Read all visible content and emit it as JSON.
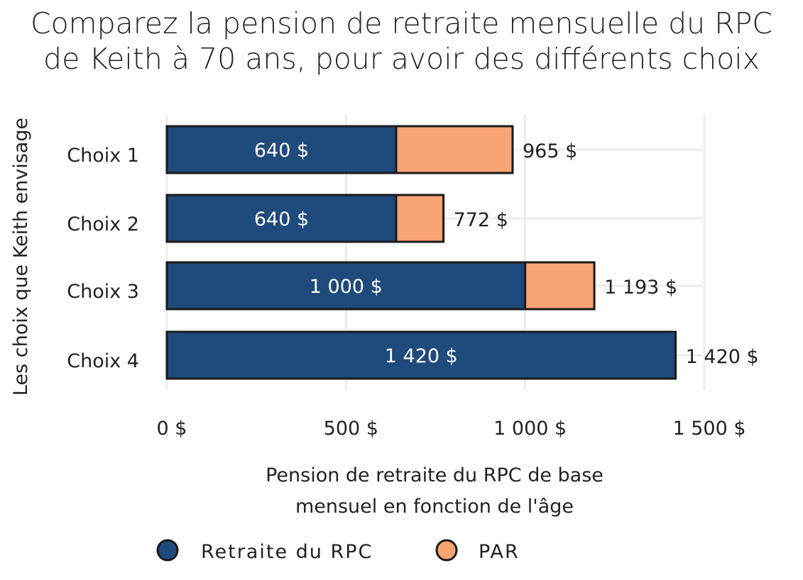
{
  "chart_data": {
    "type": "bar",
    "orientation": "horizontal",
    "stacked": true,
    "title_lines": [
      "Comparez la pension de retraite mensuelle du RPC",
      "de Keith à 70 ans, pour avoir des différents choix"
    ],
    "categories": [
      "Choix 1",
      "Choix 2",
      "Choix 3",
      "Choix 4"
    ],
    "series": [
      {
        "name": "Retraite du RPC",
        "values": [
          640,
          640,
          1000,
          1420
        ],
        "labels": [
          "640 $",
          "640 $",
          "1 000 $",
          "1 420 $"
        ]
      },
      {
        "name": "PAR",
        "values": [
          325,
          132,
          193,
          0
        ]
      }
    ],
    "totals": [
      965,
      772,
      1193,
      1420
    ],
    "total_labels": [
      "965 $",
      "772 $",
      "1 193 $",
      "1 420 $"
    ],
    "ylabel": "Les choix que Keith envisage",
    "xlabel_lines": [
      "Pension de retraite du RPC de base",
      "mensuel en fonction de l'âge"
    ],
    "x_ticks": [
      0,
      500,
      1000,
      1500
    ],
    "x_tick_labels": [
      "0 $",
      "500 $",
      "1 000 $",
      "1 500 $"
    ],
    "xlim": [
      0,
      1500
    ],
    "grid": true,
    "legend_position": "bottom"
  },
  "colors": {
    "rpc": "#1f4a7c",
    "par": "#f9a473",
    "outline": "#1a1a1a",
    "grid": "#ececec",
    "text": "#222222"
  }
}
